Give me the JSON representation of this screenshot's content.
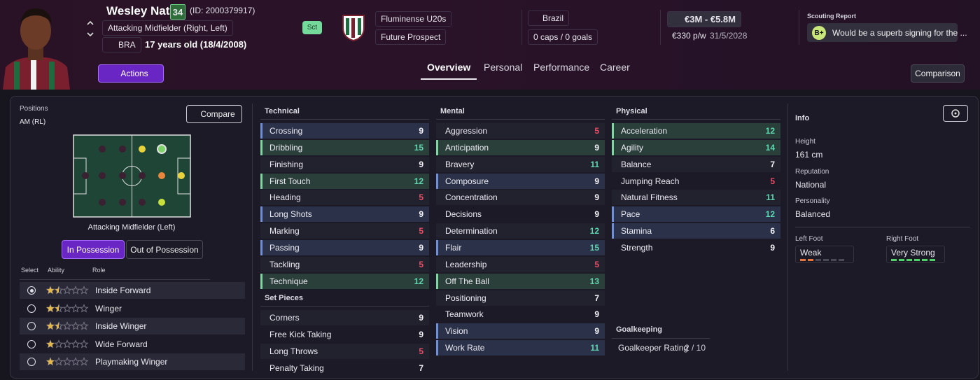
{
  "header": {
    "name": "Wesley Natã",
    "ability": "34",
    "id": "(ID: 2000379917)",
    "position": "Attacking Midfielder (Right, Left)",
    "nation_code": "BRA",
    "age": "17 years old (18/4/2008)",
    "actions": "Actions",
    "scout_button": "Sct",
    "club": "Fluminense U20s",
    "status": "Future Prospect",
    "country": "Brazil",
    "caps": "0 caps / 0 goals",
    "value": "€3M - €5.8M",
    "wage": "€330 p/w",
    "contract_end": "31/5/2028",
    "scouting_title": "Scouting Report",
    "scouting_grade": "B+",
    "scouting_text": "Would be a superb signing for the ...",
    "tabs": [
      "Overview",
      "Personal",
      "Performance",
      "Career"
    ],
    "comparison": "Comparison"
  },
  "positions": {
    "title": "Positions",
    "value": "AM (RL)",
    "compare": "Compare",
    "pitch_caption": "Attacking Midfielder (Left)",
    "toggles": [
      "In Possession",
      "Out of Possession"
    ],
    "columns": [
      "Select",
      "Ability",
      "Role"
    ],
    "roles": [
      {
        "name": "Inside Forward",
        "stars": 1.5,
        "selected": true
      },
      {
        "name": "Winger",
        "stars": 1.5,
        "selected": false
      },
      {
        "name": "Inside Winger",
        "stars": 1.5,
        "selected": false
      },
      {
        "name": "Wide Forward",
        "stars": 1,
        "selected": false
      },
      {
        "name": "Playmaking Winger",
        "stars": 1,
        "selected": false
      }
    ]
  },
  "attributes": [
    {
      "title": "Technical",
      "rows": [
        {
          "name": "Crossing",
          "value": 9,
          "highlight": "blue"
        },
        {
          "name": "Dribbling",
          "value": 15,
          "highlight": "green"
        },
        {
          "name": "Finishing",
          "value": 9
        },
        {
          "name": "First Touch",
          "value": 12,
          "highlight": "green"
        },
        {
          "name": "Heading",
          "value": 5
        },
        {
          "name": "Long Shots",
          "value": 9,
          "highlight": "blue"
        },
        {
          "name": "Marking",
          "value": 5
        },
        {
          "name": "Passing",
          "value": 9,
          "highlight": "blue"
        },
        {
          "name": "Tackling",
          "value": 5
        },
        {
          "name": "Technique",
          "value": 12,
          "highlight": "green"
        }
      ]
    },
    {
      "title": "Set Pieces",
      "rows": [
        {
          "name": "Corners",
          "value": 9
        },
        {
          "name": "Free Kick Taking",
          "value": 9
        },
        {
          "name": "Long Throws",
          "value": 5
        },
        {
          "name": "Penalty Taking",
          "value": 7
        }
      ]
    },
    {
      "title": "Mental",
      "rows": [
        {
          "name": "Aggression",
          "value": 5
        },
        {
          "name": "Anticipation",
          "value": 9,
          "highlight": "green"
        },
        {
          "name": "Bravery",
          "value": 11
        },
        {
          "name": "Composure",
          "value": 9,
          "highlight": "blue"
        },
        {
          "name": "Concentration",
          "value": 9
        },
        {
          "name": "Decisions",
          "value": 9
        },
        {
          "name": "Determination",
          "value": 12
        },
        {
          "name": "Flair",
          "value": 15,
          "highlight": "blue"
        },
        {
          "name": "Leadership",
          "value": 5
        },
        {
          "name": "Off The Ball",
          "value": 13,
          "highlight": "green"
        },
        {
          "name": "Positioning",
          "value": 7
        },
        {
          "name": "Teamwork",
          "value": 9
        },
        {
          "name": "Vision",
          "value": 9,
          "highlight": "blue"
        },
        {
          "name": "Work Rate",
          "value": 11,
          "highlight": "blue"
        }
      ]
    },
    {
      "title": "Physical",
      "rows": [
        {
          "name": "Acceleration",
          "value": 12,
          "highlight": "green"
        },
        {
          "name": "Agility",
          "value": 14,
          "highlight": "green"
        },
        {
          "name": "Balance",
          "value": 7
        },
        {
          "name": "Jumping Reach",
          "value": 5
        },
        {
          "name": "Natural Fitness",
          "value": 11
        },
        {
          "name": "Pace",
          "value": 12,
          "highlight": "blue"
        },
        {
          "name": "Stamina",
          "value": 6,
          "highlight": "blue"
        },
        {
          "name": "Strength",
          "value": 9
        }
      ]
    }
  ],
  "goalkeeping": {
    "title": "Goalkeeping",
    "label": "Goalkeeper Rating",
    "value": "2 / 10"
  },
  "info": {
    "title": "Info",
    "fields": [
      {
        "label": "Height",
        "value": "161 cm"
      },
      {
        "label": "Reputation",
        "value": "National"
      },
      {
        "label": "Personality",
        "value": "Balanced"
      }
    ],
    "feet": [
      {
        "label": "Left Foot",
        "value": "Weak",
        "level": 2,
        "color": "#e8743b"
      },
      {
        "label": "Right Foot",
        "value": "Very Strong",
        "level": 6,
        "color": "#4fd16a"
      }
    ]
  }
}
